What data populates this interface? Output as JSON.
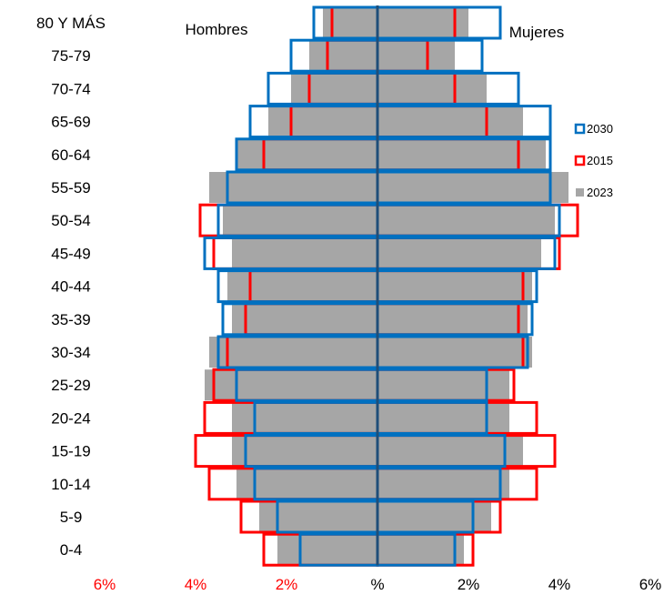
{
  "chart_data": {
    "type": "bar",
    "subtype": "population-pyramid",
    "categories": [
      "0-4",
      "5-9",
      "10-14",
      "15-19",
      "20-24",
      "25-29",
      "30-34",
      "35-39",
      "40-44",
      "45-49",
      "50-54",
      "55-59",
      "60-64",
      "65-69",
      "70-74",
      "75-79",
      "80 Y MÁS"
    ],
    "side_labels": {
      "left": "Hombres",
      "right": "Mujeres"
    },
    "x_ticks": [
      "6%",
      "4%",
      "2%",
      "%",
      "2%",
      "4%",
      "6%"
    ],
    "xlim": [
      -6,
      6
    ],
    "grid": false,
    "legend_position": "right",
    "series": [
      {
        "name": "2023",
        "style": "filled",
        "color": "#a6a6a6",
        "men": [
          2.2,
          2.6,
          3.1,
          3.2,
          3.2,
          3.8,
          3.7,
          3.2,
          3.3,
          3.2,
          3.4,
          3.7,
          3.1,
          2.4,
          1.9,
          1.5,
          1.2
        ],
        "women": [
          1.9,
          2.5,
          2.9,
          3.2,
          2.9,
          2.9,
          3.4,
          3.3,
          3.4,
          3.6,
          3.9,
          4.2,
          3.7,
          3.2,
          2.4,
          1.7,
          2.0
        ]
      },
      {
        "name": "2015",
        "style": "outline",
        "color": "#ff0000",
        "men": [
          2.5,
          3.0,
          3.7,
          4.0,
          3.8,
          3.6,
          3.3,
          2.9,
          2.8,
          3.6,
          3.9,
          3.3,
          2.5,
          1.9,
          1.5,
          1.1,
          1.0
        ],
        "women": [
          2.1,
          2.7,
          3.5,
          3.9,
          3.5,
          3.0,
          3.2,
          3.1,
          3.2,
          4.0,
          4.4,
          3.8,
          3.1,
          2.4,
          1.7,
          1.1,
          1.7
        ]
      },
      {
        "name": "2030",
        "style": "outline",
        "color": "#0070c0",
        "men": [
          1.7,
          2.2,
          2.7,
          2.9,
          2.7,
          3.1,
          3.5,
          3.4,
          3.5,
          3.8,
          3.5,
          3.3,
          3.1,
          2.8,
          2.4,
          1.9,
          1.4
        ],
        "women": [
          1.7,
          2.1,
          2.7,
          2.8,
          2.4,
          2.4,
          3.3,
          3.4,
          3.5,
          3.9,
          4.0,
          3.8,
          3.8,
          3.8,
          3.1,
          2.3,
          2.7
        ]
      }
    ]
  },
  "colors": {
    "axis": "#1f4e79",
    "tick_negative": "#ff0000",
    "tick_neutral": "#000000",
    "tick_positive": "#ff0000"
  }
}
